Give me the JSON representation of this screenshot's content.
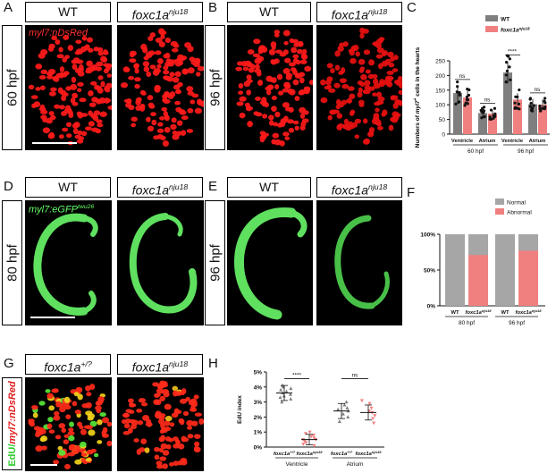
{
  "panels": {
    "A": {
      "letter": "A",
      "stage": "60 hpf",
      "wt": "WT",
      "mut_gene": "foxc1a",
      "mut_allele": "nju18",
      "marker": "myl7:nDsRed"
    },
    "B": {
      "letter": "B",
      "stage": "96 hpf",
      "wt": "WT",
      "mut_gene": "foxc1a",
      "mut_allele": "nju18"
    },
    "C": {
      "letter": "C"
    },
    "D": {
      "letter": "D",
      "stage": "80 hpf",
      "wt": "WT",
      "mut_gene": "foxc1a",
      "mut_allele": "nju18",
      "marker": "myl7:eGFP",
      "marker_sup": "twu26"
    },
    "E": {
      "letter": "E",
      "stage": "96 hpf",
      "wt": "WT",
      "mut_gene": "foxc1a",
      "mut_allele": "nju18"
    },
    "F": {
      "letter": "F"
    },
    "G": {
      "letter": "G",
      "ctrl_gene": "foxc1a",
      "ctrl_sup": "+/?",
      "mut_gene": "foxc1a",
      "mut_allele": "nju18",
      "side_a": "EdU/",
      "side_b": "myl7:nDsRed"
    },
    "H": {
      "letter": "H"
    }
  },
  "chart_data": [
    {
      "id": "C",
      "type": "bar",
      "ylabel_pre": "Numbers of ",
      "ylabel_gene": "myl7",
      "ylabel_sup": "+",
      "ylabel_post": " cells in the hearts",
      "ylim": [
        0,
        250
      ],
      "yticks": [
        0,
        50,
        100,
        150,
        200,
        250
      ],
      "legend": [
        {
          "name": "WT",
          "color": "#7f7f7f"
        },
        {
          "name": "foxc1a",
          "sup": "nju18",
          "color": "#f08080"
        }
      ],
      "groups": [
        {
          "name": "Ventricle",
          "stage": "60 hpf",
          "wt": 140,
          "mut": 125,
          "sig": "ns"
        },
        {
          "name": "Atrium",
          "stage": "60 hpf",
          "wt": 72,
          "mut": 70,
          "sig": "ns"
        },
        {
          "name": "Ventricle",
          "stage": "96 hpf",
          "wt": 210,
          "mut": 118,
          "sig": "****"
        },
        {
          "name": "Atrium",
          "stage": "96 hpf",
          "wt": 102,
          "mut": 100,
          "sig": "ns"
        }
      ],
      "stages": [
        "60 hpf",
        "96 hpf"
      ]
    },
    {
      "id": "F",
      "type": "bar",
      "ylim": [
        0,
        100
      ],
      "yticks": [
        "0%",
        "50%",
        "100%"
      ],
      "legend": [
        {
          "name": "Normal",
          "color": "#a6a6a6"
        },
        {
          "name": "Abnormal",
          "color": "#f08080"
        }
      ],
      "bars": [
        {
          "label": "WT",
          "abnormal": 0
        },
        {
          "label": "foxc1a",
          "sup": "nju18",
          "abnormal": 71
        },
        {
          "label": "WT",
          "abnormal": 0
        },
        {
          "label": "foxc1a",
          "sup": "nju18",
          "abnormal": 77
        }
      ],
      "stages": [
        "80 hpf",
        "96 hpf"
      ]
    },
    {
      "id": "H",
      "type": "scatter",
      "ylabel": "EdU index",
      "ylim": [
        0,
        5
      ],
      "yticks": [
        "0%",
        "1%",
        "2%",
        "3%",
        "4%",
        "5%"
      ],
      "groups": [
        {
          "gene": "foxc1a",
          "sup": "+/?",
          "region": "Ventricle",
          "mean": 3.6,
          "sd": 0.5,
          "color": "#7f7f7f",
          "points": [
            3.0,
            3.3,
            3.5,
            3.6,
            3.7,
            3.8,
            3.9,
            4.0,
            4.1,
            3.4,
            3.2
          ]
        },
        {
          "gene": "foxc1a",
          "sup": "nju18",
          "region": "Ventricle",
          "mean": 0.5,
          "sd": 0.35,
          "color": "#f08080",
          "points": [
            0.1,
            0.2,
            0.3,
            0.4,
            0.5,
            0.5,
            0.6,
            0.7,
            0.8,
            0.9,
            1.0
          ]
        },
        {
          "gene": "foxc1a",
          "sup": "+/?",
          "region": "Atrium",
          "mean": 2.4,
          "sd": 0.5,
          "color": "#7f7f7f",
          "points": [
            1.7,
            2.0,
            2.2,
            2.4,
            2.5,
            2.6,
            2.8,
            3.0
          ]
        },
        {
          "gene": "foxc1a",
          "sup": "nju18",
          "region": "Atrium",
          "mean": 2.3,
          "sd": 0.5,
          "color": "#f08080",
          "points": [
            1.6,
            1.9,
            2.1,
            2.3,
            2.4,
            2.6,
            2.9,
            3.1
          ]
        }
      ],
      "sig": [
        {
          "label": "****"
        },
        {
          "label": "ns"
        }
      ],
      "regions": [
        "Ventricle",
        "Atrium"
      ]
    }
  ]
}
